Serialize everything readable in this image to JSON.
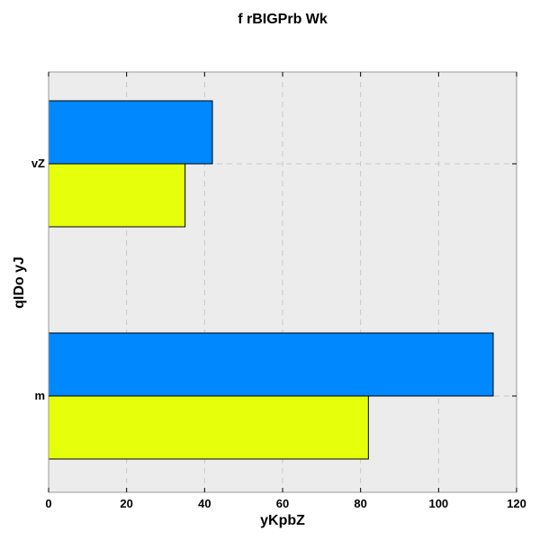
{
  "chart_data": {
    "type": "bar",
    "orientation": "horizontal",
    "title": "f rBIGPrb Wk",
    "xlabel": "yKpbZ",
    "ylabel": "qIDo yJ",
    "categories": [
      "m",
      "vZ"
    ],
    "series": [
      {
        "values": [
          82,
          35
        ],
        "color": "#e6ff0a"
      },
      {
        "values": [
          114,
          42
        ],
        "color": "#0088ff"
      }
    ],
    "xlim": [
      0,
      120
    ],
    "xticks": [
      0,
      20,
      40,
      60,
      80,
      100,
      120
    ],
    "grid": true,
    "legend": "none",
    "background": "#ececec"
  }
}
